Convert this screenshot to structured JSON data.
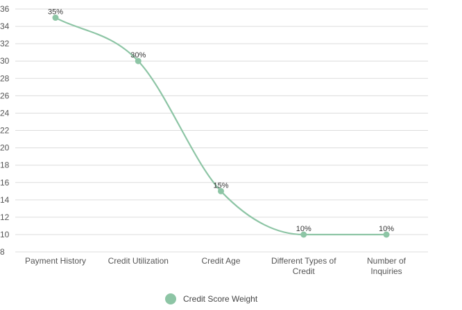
{
  "chart_data": {
    "type": "line",
    "categories": [
      "Payment History",
      "Credit Utilization",
      "Credit Age",
      "Different Types of Credit",
      "Number of Inquiries"
    ],
    "series": [
      {
        "name": "Credit Score Weight",
        "values": [
          35,
          30,
          15,
          10,
          10
        ],
        "data_labels": [
          "35%",
          "30%",
          "15%",
          "10%",
          "10%"
        ],
        "color": "#8dc5a5"
      }
    ],
    "ylim": [
      8,
      36
    ],
    "yticks": [
      8,
      10,
      12,
      14,
      16,
      18,
      20,
      22,
      24,
      26,
      28,
      30,
      32,
      34,
      36
    ],
    "grid": true,
    "curve": "smooth",
    "legend": "bottom-center",
    "gridColor": "#dcdcdc"
  }
}
